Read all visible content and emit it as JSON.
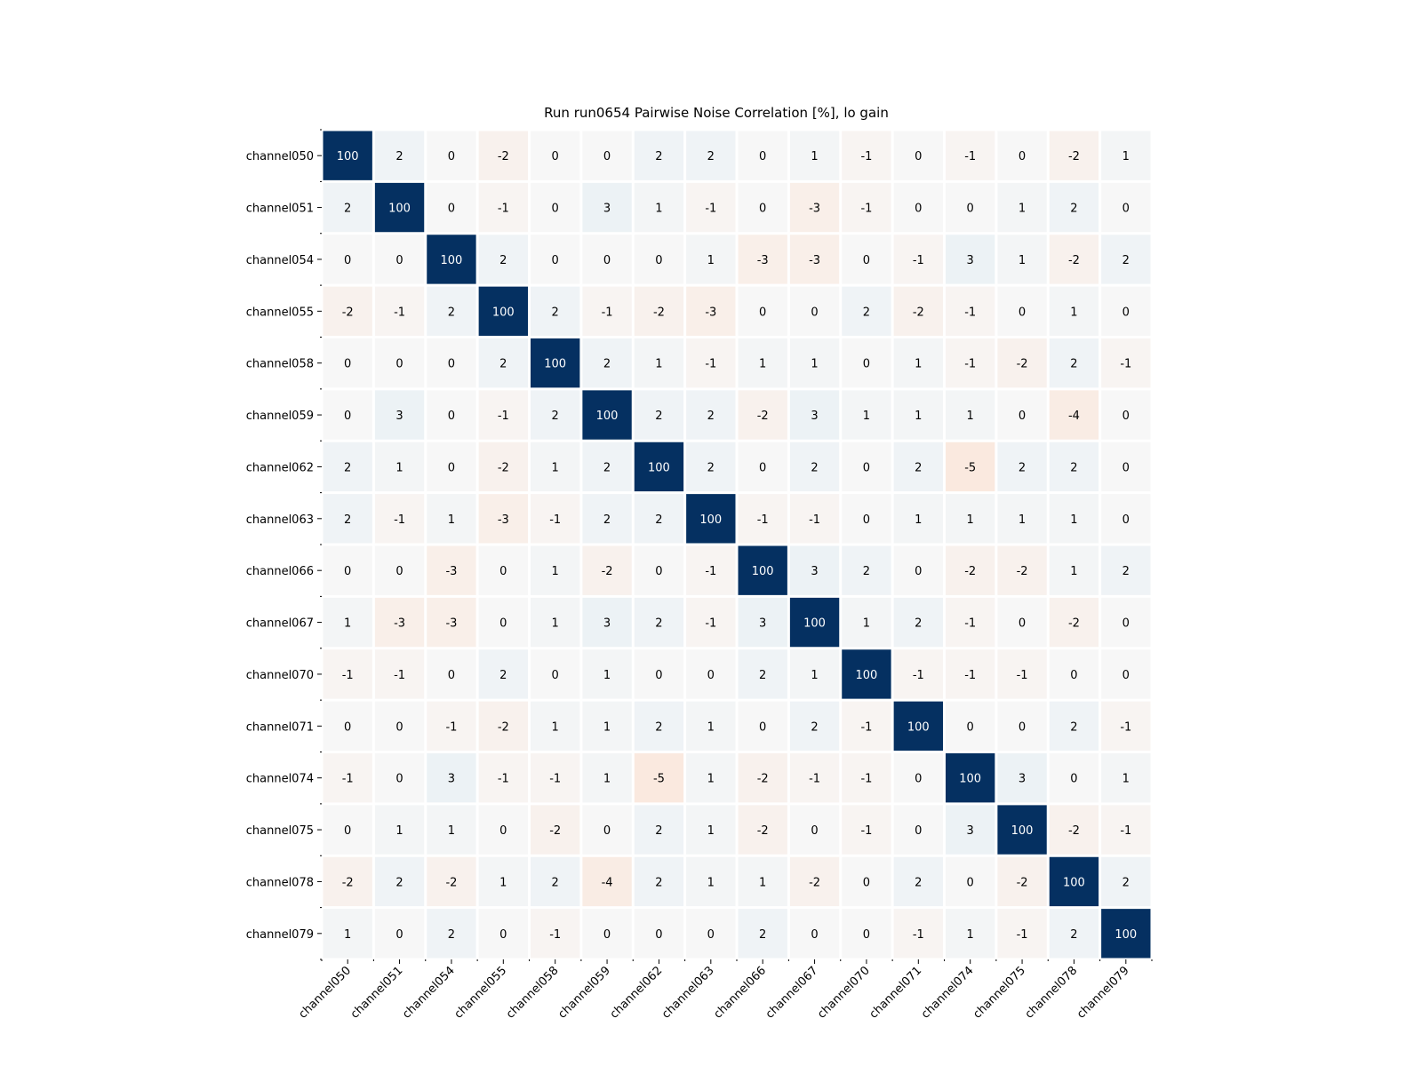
{
  "chart_data": {
    "type": "heatmap",
    "title": "Run run0654 Pairwise Noise Correlation [%], lo gain",
    "labels": [
      "channel050",
      "channel051",
      "channel054",
      "channel055",
      "channel058",
      "channel059",
      "channel062",
      "channel063",
      "channel066",
      "channel067",
      "channel070",
      "channel071",
      "channel074",
      "channel075",
      "channel078",
      "channel079"
    ],
    "values": [
      [
        100,
        2,
        0,
        -2,
        0,
        0,
        2,
        2,
        0,
        1,
        -1,
        0,
        -1,
        0,
        -2,
        1
      ],
      [
        2,
        100,
        0,
        -1,
        0,
        3,
        1,
        -1,
        0,
        -3,
        -1,
        0,
        0,
        1,
        2,
        0
      ],
      [
        0,
        0,
        100,
        2,
        0,
        0,
        0,
        1,
        -3,
        -3,
        0,
        -1,
        3,
        1,
        -2,
        2
      ],
      [
        -2,
        -1,
        2,
        100,
        2,
        -1,
        -2,
        -3,
        0,
        0,
        2,
        -2,
        -1,
        0,
        1,
        0
      ],
      [
        0,
        0,
        0,
        2,
        100,
        2,
        1,
        -1,
        1,
        1,
        0,
        1,
        -1,
        -2,
        2,
        -1
      ],
      [
        0,
        3,
        0,
        -1,
        2,
        100,
        2,
        2,
        -2,
        3,
        1,
        1,
        1,
        0,
        -4,
        0
      ],
      [
        2,
        1,
        0,
        -2,
        1,
        2,
        100,
        2,
        0,
        2,
        0,
        2,
        -5,
        2,
        2,
        0
      ],
      [
        2,
        -1,
        1,
        -3,
        -1,
        2,
        2,
        100,
        -1,
        -1,
        0,
        1,
        1,
        1,
        1,
        0
      ],
      [
        0,
        0,
        -3,
        0,
        1,
        -2,
        0,
        -1,
        100,
        3,
        2,
        0,
        -2,
        -2,
        1,
        2
      ],
      [
        1,
        -3,
        -3,
        0,
        1,
        3,
        2,
        -1,
        3,
        100,
        1,
        2,
        -1,
        0,
        -2,
        0
      ],
      [
        -1,
        -1,
        0,
        2,
        0,
        1,
        0,
        0,
        2,
        1,
        100,
        -1,
        -1,
        -1,
        0,
        0
      ],
      [
        0,
        0,
        -1,
        -2,
        1,
        1,
        2,
        1,
        0,
        2,
        -1,
        100,
        0,
        0,
        2,
        -1
      ],
      [
        -1,
        0,
        3,
        -1,
        -1,
        1,
        -5,
        1,
        -2,
        -1,
        -1,
        0,
        100,
        3,
        0,
        1
      ],
      [
        0,
        1,
        1,
        0,
        -2,
        0,
        2,
        1,
        -2,
        0,
        -1,
        0,
        3,
        100,
        -2,
        -1
      ],
      [
        -2,
        2,
        -2,
        1,
        2,
        -4,
        2,
        1,
        1,
        -2,
        0,
        2,
        0,
        -2,
        100,
        2
      ],
      [
        1,
        0,
        2,
        0,
        -1,
        0,
        0,
        0,
        2,
        0,
        0,
        -1,
        1,
        -1,
        2,
        100
      ]
    ],
    "colormap": "RdBu",
    "vmin": -100,
    "vmax": 100,
    "colors": {
      "max": "#053061",
      "neutral": "#f7f7f7",
      "positive_light": "#dce9f2",
      "negative_light": "#f9d8c6"
    },
    "grid": false,
    "legend": "none"
  }
}
